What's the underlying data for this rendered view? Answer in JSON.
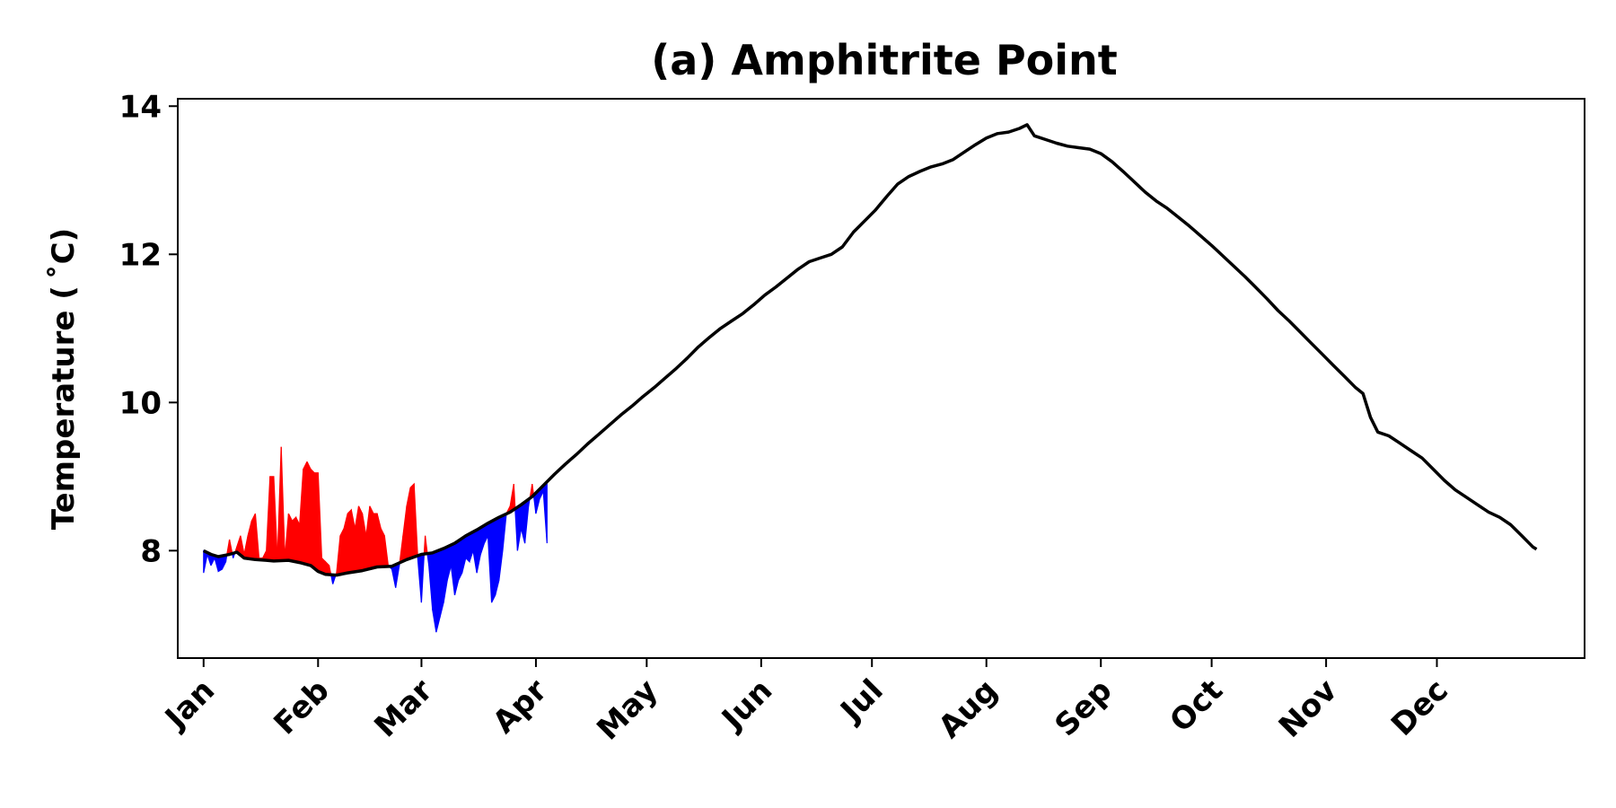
{
  "chart_data": {
    "type": "line",
    "title": "(a) Amphitrite Point",
    "xlabel": "",
    "ylabel": "Temperature ( $^\\circ$C)",
    "ylabel_display": "Temperature ( ˚C)",
    "x_unit": "day of year",
    "xlim": [
      -6,
      375
    ],
    "ylim": [
      6.55,
      14.1
    ],
    "yticks": [
      8,
      10,
      12,
      14
    ],
    "xticks": [
      {
        "label": "Jan",
        "day": 1
      },
      {
        "label": "Feb",
        "day": 32
      },
      {
        "label": "Mar",
        "day": 60
      },
      {
        "label": "Apr",
        "day": 91
      },
      {
        "label": "May",
        "day": 121
      },
      {
        "label": "Jun",
        "day": 152
      },
      {
        "label": "Jul",
        "day": 182
      },
      {
        "label": "Aug",
        "day": 213
      },
      {
        "label": "Sep",
        "day": 244
      },
      {
        "label": "Oct",
        "day": 274
      },
      {
        "label": "Nov",
        "day": 305
      },
      {
        "label": "Dec",
        "day": 335
      }
    ],
    "grid": false,
    "legend": "none",
    "colors": {
      "climatology": "#000000",
      "above": "#ff0000",
      "below": "#0000ff"
    },
    "climatology": [
      [
        1,
        8.0
      ],
      [
        3,
        7.95
      ],
      [
        5,
        7.92
      ],
      [
        8,
        7.95
      ],
      [
        10,
        7.98
      ],
      [
        12,
        7.9
      ],
      [
        15,
        7.88
      ],
      [
        18,
        7.87
      ],
      [
        20,
        7.86
      ],
      [
        24,
        7.87
      ],
      [
        27,
        7.84
      ],
      [
        30,
        7.8
      ],
      [
        32,
        7.72
      ],
      [
        34,
        7.68
      ],
      [
        37,
        7.67
      ],
      [
        40,
        7.7
      ],
      [
        44,
        7.73
      ],
      [
        48,
        7.78
      ],
      [
        52,
        7.79
      ],
      [
        56,
        7.88
      ],
      [
        60,
        7.95
      ],
      [
        63,
        7.97
      ],
      [
        66,
        8.03
      ],
      [
        69,
        8.1
      ],
      [
        72,
        8.2
      ],
      [
        75,
        8.28
      ],
      [
        78,
        8.37
      ],
      [
        81,
        8.45
      ],
      [
        84,
        8.52
      ],
      [
        87,
        8.62
      ],
      [
        90,
        8.73
      ],
      [
        93,
        8.88
      ],
      [
        96,
        9.03
      ],
      [
        99,
        9.17
      ],
      [
        102,
        9.3
      ],
      [
        105,
        9.44
      ],
      [
        108,
        9.57
      ],
      [
        111,
        9.7
      ],
      [
        114,
        9.83
      ],
      [
        117,
        9.95
      ],
      [
        120,
        10.08
      ],
      [
        123,
        10.2
      ],
      [
        126,
        10.33
      ],
      [
        129,
        10.46
      ],
      [
        132,
        10.6
      ],
      [
        135,
        10.75
      ],
      [
        138,
        10.88
      ],
      [
        141,
        11.0
      ],
      [
        144,
        11.1
      ],
      [
        147,
        11.2
      ],
      [
        150,
        11.32
      ],
      [
        153,
        11.45
      ],
      [
        156,
        11.56
      ],
      [
        159,
        11.68
      ],
      [
        162,
        11.8
      ],
      [
        165,
        11.9
      ],
      [
        168,
        11.95
      ],
      [
        171,
        12.0
      ],
      [
        174,
        12.1
      ],
      [
        177,
        12.3
      ],
      [
        180,
        12.45
      ],
      [
        183,
        12.6
      ],
      [
        186,
        12.78
      ],
      [
        189,
        12.95
      ],
      [
        192,
        13.05
      ],
      [
        195,
        13.12
      ],
      [
        198,
        13.18
      ],
      [
        201,
        13.22
      ],
      [
        204,
        13.28
      ],
      [
        207,
        13.38
      ],
      [
        210,
        13.48
      ],
      [
        213,
        13.57
      ],
      [
        216,
        13.63
      ],
      [
        219,
        13.65
      ],
      [
        222,
        13.7
      ],
      [
        224,
        13.75
      ],
      [
        226,
        13.6
      ],
      [
        229,
        13.55
      ],
      [
        232,
        13.5
      ],
      [
        235,
        13.46
      ],
      [
        238,
        13.44
      ],
      [
        241,
        13.42
      ],
      [
        244,
        13.36
      ],
      [
        247,
        13.25
      ],
      [
        250,
        13.12
      ],
      [
        253,
        12.98
      ],
      [
        256,
        12.84
      ],
      [
        259,
        12.72
      ],
      [
        262,
        12.62
      ],
      [
        265,
        12.5
      ],
      [
        268,
        12.38
      ],
      [
        271,
        12.25
      ],
      [
        274,
        12.12
      ],
      [
        277,
        11.98
      ],
      [
        280,
        11.84
      ],
      [
        283,
        11.7
      ],
      [
        286,
        11.55
      ],
      [
        289,
        11.4
      ],
      [
        292,
        11.24
      ],
      [
        295,
        11.1
      ],
      [
        298,
        10.95
      ],
      [
        301,
        10.8
      ],
      [
        304,
        10.65
      ],
      [
        307,
        10.5
      ],
      [
        310,
        10.35
      ],
      [
        313,
        10.2
      ],
      [
        315,
        10.12
      ],
      [
        317,
        9.8
      ],
      [
        319,
        9.6
      ],
      [
        322,
        9.55
      ],
      [
        325,
        9.45
      ],
      [
        328,
        9.35
      ],
      [
        331,
        9.25
      ],
      [
        334,
        9.1
      ],
      [
        337,
        8.95
      ],
      [
        340,
        8.82
      ],
      [
        343,
        8.72
      ],
      [
        346,
        8.62
      ],
      [
        349,
        8.52
      ],
      [
        352,
        8.45
      ],
      [
        355,
        8.35
      ],
      [
        358,
        8.2
      ],
      [
        361,
        8.05
      ],
      [
        362,
        8.02
      ]
    ],
    "observed": [
      [
        1,
        7.7
      ],
      [
        2,
        7.95
      ],
      [
        3,
        7.8
      ],
      [
        4,
        7.9
      ],
      [
        5,
        7.72
      ],
      [
        6,
        7.75
      ],
      [
        7,
        7.85
      ],
      [
        8,
        8.15
      ],
      [
        9,
        7.9
      ],
      [
        10,
        8.05
      ],
      [
        11,
        8.2
      ],
      [
        12,
        7.95
      ],
      [
        13,
        8.2
      ],
      [
        14,
        8.4
      ],
      [
        15,
        8.5
      ],
      [
        16,
        7.9
      ],
      [
        17,
        7.9
      ],
      [
        18,
        8.0
      ],
      [
        19,
        9.0
      ],
      [
        20,
        9.0
      ],
      [
        21,
        7.88
      ],
      [
        22,
        9.4
      ],
      [
        23,
        7.9
      ],
      [
        24,
        8.5
      ],
      [
        25,
        8.4
      ],
      [
        26,
        8.45
      ],
      [
        27,
        8.35
      ],
      [
        28,
        9.1
      ],
      [
        29,
        9.2
      ],
      [
        30,
        9.1
      ],
      [
        31,
        9.05
      ],
      [
        32,
        9.05
      ],
      [
        33,
        7.9
      ],
      [
        34,
        7.85
      ],
      [
        35,
        7.8
      ],
      [
        36,
        7.55
      ],
      [
        37,
        7.7
      ],
      [
        38,
        8.2
      ],
      [
        39,
        8.3
      ],
      [
        40,
        8.5
      ],
      [
        41,
        8.55
      ],
      [
        42,
        8.3
      ],
      [
        43,
        8.6
      ],
      [
        44,
        8.5
      ],
      [
        45,
        8.2
      ],
      [
        46,
        8.6
      ],
      [
        47,
        8.5
      ],
      [
        48,
        8.5
      ],
      [
        49,
        8.3
      ],
      [
        50,
        8.2
      ],
      [
        51,
        7.8
      ],
      [
        52,
        7.75
      ],
      [
        53,
        7.5
      ],
      [
        54,
        7.8
      ],
      [
        55,
        8.2
      ],
      [
        56,
        8.6
      ],
      [
        57,
        8.85
      ],
      [
        58,
        8.9
      ],
      [
        59,
        7.9
      ],
      [
        60,
        7.3
      ],
      [
        61,
        8.2
      ],
      [
        62,
        7.8
      ],
      [
        63,
        7.2
      ],
      [
        64,
        6.9
      ],
      [
        65,
        7.1
      ],
      [
        66,
        7.3
      ],
      [
        67,
        7.6
      ],
      [
        68,
        7.8
      ],
      [
        69,
        7.4
      ],
      [
        70,
        7.6
      ],
      [
        71,
        7.7
      ],
      [
        72,
        7.9
      ],
      [
        73,
        7.85
      ],
      [
        74,
        8.0
      ],
      [
        75,
        7.7
      ],
      [
        76,
        7.95
      ],
      [
        77,
        8.1
      ],
      [
        78,
        8.2
      ],
      [
        79,
        7.3
      ],
      [
        80,
        7.4
      ],
      [
        81,
        7.6
      ],
      [
        82,
        8.0
      ],
      [
        83,
        8.5
      ],
      [
        84,
        8.6
      ],
      [
        85,
        8.9
      ],
      [
        86,
        8.0
      ],
      [
        87,
        8.3
      ],
      [
        88,
        8.1
      ],
      [
        89,
        8.6
      ],
      [
        90,
        8.9
      ],
      [
        91,
        8.5
      ],
      [
        92,
        8.7
      ],
      [
        93,
        8.8
      ],
      [
        94,
        8.1
      ]
    ]
  }
}
